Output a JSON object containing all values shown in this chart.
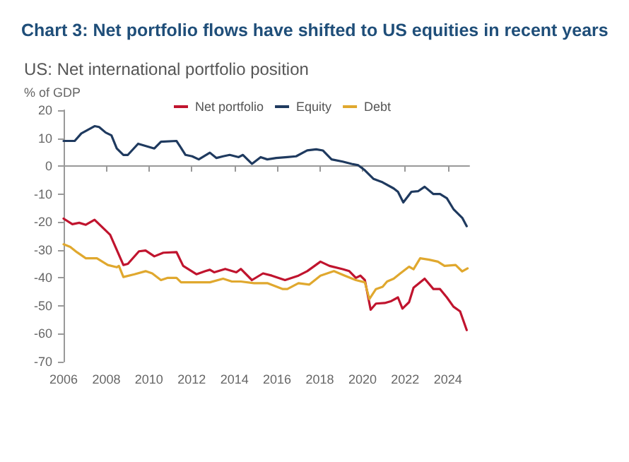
{
  "chart_data": {
    "type": "line",
    "title": "Chart 3: Net portfolio flows have shifted to US equities in recent years",
    "subtitle": "US: Net international portfolio position",
    "ylabel": "% of GDP",
    "xlim": [
      2006,
      2025
    ],
    "xticks": [
      2006,
      2008,
      2010,
      2012,
      2014,
      2016,
      2018,
      2020,
      2022,
      2024
    ],
    "ylim": [
      -70,
      20
    ],
    "yticks": [
      -70,
      -60,
      -50,
      -40,
      -30,
      -20,
      -10,
      0,
      10,
      20
    ],
    "legend": "top",
    "marker": "none",
    "line_style": "solid",
    "series": [
      {
        "name": "Net portfolio",
        "color": "#c0142e",
        "x": [
          2006.0,
          2006.41,
          2006.73,
          2007.04,
          2007.45,
          2007.76,
          2008.18,
          2008.8,
          2009.01,
          2009.53,
          2009.84,
          2010.25,
          2010.67,
          2011.29,
          2011.6,
          2012.22,
          2012.64,
          2012.85,
          2013.05,
          2013.57,
          2014.09,
          2014.3,
          2014.82,
          2015.34,
          2015.75,
          2016.37,
          2017.0,
          2017.41,
          2018.03,
          2018.45,
          2019.07,
          2019.38,
          2019.69,
          2019.9,
          2020.11,
          2020.38,
          2020.63,
          2021.04,
          2021.35,
          2021.66,
          2021.87,
          2022.18,
          2022.39,
          2022.91,
          2023.32,
          2023.63,
          2023.95,
          2024.26,
          2024.57,
          2024.88
        ],
        "values": [
          -18.8,
          -20.8,
          -20.3,
          -21,
          -19.2,
          -21.5,
          -24.6,
          -35.4,
          -35,
          -30.5,
          -30.2,
          -32.3,
          -31,
          -30.8,
          -35.7,
          -38.7,
          -37.6,
          -37.1,
          -38,
          -36.8,
          -38,
          -36.8,
          -40.8,
          -38.4,
          -39.2,
          -40.8,
          -39.2,
          -37.6,
          -34.2,
          -35.7,
          -36.9,
          -37.6,
          -40,
          -39.2,
          -40.8,
          -51.4,
          -49.2,
          -49,
          -48.3,
          -47,
          -51,
          -48.7,
          -43.5,
          -40.3,
          -44,
          -44,
          -47,
          -50.3,
          -52,
          -58.7
        ]
      },
      {
        "name": "Equity",
        "color": "#1f3a5f",
        "x": [
          2006.0,
          2006.52,
          2006.83,
          2007.45,
          2007.66,
          2007.97,
          2008.24,
          2008.49,
          2008.8,
          2009.01,
          2009.49,
          2009.94,
          2010.25,
          2010.56,
          2011.29,
          2011.71,
          2012.02,
          2012.33,
          2012.85,
          2013.16,
          2013.47,
          2013.78,
          2014.2,
          2014.4,
          2014.82,
          2015.23,
          2015.54,
          2015.96,
          2016.48,
          2016.89,
          2017.41,
          2017.83,
          2018.14,
          2018.55,
          2019.07,
          2019.49,
          2019.8,
          2020.11,
          2020.52,
          2020.94,
          2021.46,
          2021.66,
          2021.91,
          2022.29,
          2022.6,
          2022.91,
          2023.32,
          2023.63,
          2023.95,
          2024.26,
          2024.67,
          2024.88
        ],
        "values": [
          9,
          9,
          11.7,
          14.3,
          14,
          12,
          11,
          6.3,
          4,
          4,
          8,
          7,
          6.3,
          8.7,
          9,
          4,
          3.5,
          2.4,
          4.8,
          2.9,
          3.5,
          4,
          3.2,
          4,
          0.8,
          3.2,
          2.4,
          2.9,
          3.2,
          3.5,
          5.6,
          6,
          5.6,
          2.4,
          1.6,
          0.8,
          0.3,
          -1.5,
          -4.6,
          -5.8,
          -8,
          -9.2,
          -13,
          -9.2,
          -9,
          -7.4,
          -10,
          -10,
          -11.5,
          -15.4,
          -18.5,
          -21.5
        ]
      },
      {
        "name": "Debt",
        "color": "#e0a82e",
        "x": [
          2006.0,
          2006.31,
          2006.62,
          2007.04,
          2007.56,
          2008.07,
          2008.49,
          2008.59,
          2008.8,
          2009.32,
          2009.84,
          2010.15,
          2010.56,
          2010.88,
          2011.29,
          2011.5,
          2012.02,
          2012.85,
          2013.47,
          2013.88,
          2014.3,
          2014.92,
          2015.54,
          2016.27,
          2016.48,
          2017.0,
          2017.51,
          2018.03,
          2018.66,
          2019.17,
          2019.69,
          2020.11,
          2020.32,
          2020.63,
          2020.94,
          2021.15,
          2021.46,
          2021.77,
          2022.18,
          2022.39,
          2022.7,
          2023.12,
          2023.53,
          2023.84,
          2024.36,
          2024.67,
          2024.92
        ],
        "values": [
          -28,
          -28.9,
          -30.8,
          -33,
          -33,
          -35.4,
          -36.2,
          -35.7,
          -39.7,
          -38.7,
          -37.6,
          -38.4,
          -40.8,
          -40,
          -40,
          -41.6,
          -41.6,
          -41.6,
          -40.3,
          -41.3,
          -41.3,
          -41.9,
          -41.9,
          -44,
          -44,
          -41.9,
          -42.4,
          -39.2,
          -37.6,
          -39.2,
          -40.8,
          -41.6,
          -47.6,
          -44,
          -43.2,
          -41.3,
          -40.3,
          -38.4,
          -36,
          -36.9,
          -33,
          -33.5,
          -34.2,
          -35.7,
          -35.4,
          -37.7,
          -36.6
        ]
      }
    ]
  }
}
